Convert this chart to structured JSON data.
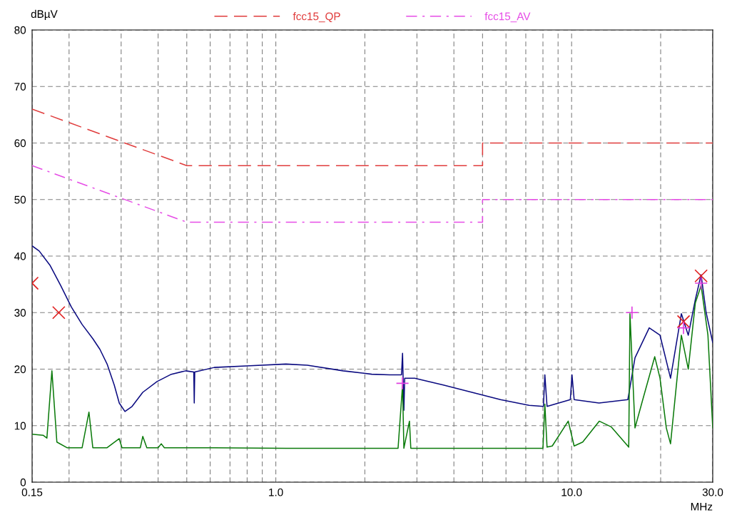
{
  "chart_data": {
    "type": "line",
    "ylabel": "dBµV",
    "xlabel": "MHz",
    "log": "x",
    "xlim": [
      0.15,
      30
    ],
    "ylim": [
      0,
      80
    ],
    "xticks": [
      {
        "value": 0.15,
        "label": "0.15"
      },
      {
        "value": 0.2,
        "label": null
      },
      {
        "value": 0.3,
        "label": null
      },
      {
        "value": 0.4,
        "label": null
      },
      {
        "value": 0.5,
        "label": null
      },
      {
        "value": 0.6,
        "label": null
      },
      {
        "value": 0.7,
        "label": null
      },
      {
        "value": 0.8,
        "label": null
      },
      {
        "value": 0.9,
        "label": null
      },
      {
        "value": 1,
        "label": "1.0"
      },
      {
        "value": 2,
        "label": null
      },
      {
        "value": 3,
        "label": null
      },
      {
        "value": 4,
        "label": null
      },
      {
        "value": 5,
        "label": null
      },
      {
        "value": 6,
        "label": null
      },
      {
        "value": 7,
        "label": null
      },
      {
        "value": 8,
        "label": null
      },
      {
        "value": 9,
        "label": null
      },
      {
        "value": 10,
        "label": "10.0"
      },
      {
        "value": 20,
        "label": null
      },
      {
        "value": 30,
        "label": "30.0"
      }
    ],
    "yticks": [
      0,
      10,
      20,
      30,
      40,
      50,
      60,
      70,
      80
    ],
    "grid": true,
    "legend": "top",
    "series": [
      {
        "name": "fcc15_QP",
        "color": "#e03c3c",
        "line_style": "dashed",
        "x": [
          0.15,
          0.5,
          5,
          5,
          30
        ],
        "values": [
          66,
          56,
          56,
          60,
          60
        ]
      },
      {
        "name": "fcc15_AV",
        "color": "#e64ce6",
        "line_style": "dashdot",
        "x": [
          0.15,
          0.5,
          5,
          5,
          30
        ],
        "values": [
          56,
          46,
          46,
          50,
          50
        ]
      },
      {
        "color": "#0a0a80",
        "line_style": "solid",
        "x": [
          0.15,
          0.1585,
          0.1723,
          0.1873,
          0.2036,
          0.2214,
          0.2406,
          0.2543,
          0.2689,
          0.2843,
          0.2956,
          0.309,
          0.3266,
          0.355,
          0.3967,
          0.4434,
          0.4955,
          0.528,
          0.53,
          0.532,
          0.6195,
          0.8186,
          1.082,
          1.278,
          1.689,
          2.11,
          2.426,
          2.66,
          2.682,
          2.71,
          2.727,
          2.948,
          3.684,
          4.602,
          5.75,
          7.185,
          8.03,
          8.12,
          8.26,
          9.9,
          10.03,
          10.2,
          12.38,
          15.49,
          16.38,
          18.3,
          19.9,
          21.6,
          23.5,
          24.8,
          26.2,
          27.4,
          28.5,
          30
        ],
        "values": [
          41.8,
          40.9,
          38.4,
          34.8,
          31,
          27.9,
          25.4,
          23.5,
          20.9,
          17.2,
          14,
          12.5,
          13.4,
          15.9,
          17.8,
          19.1,
          19.7,
          19.5,
          14,
          19.5,
          20.3,
          20.6,
          20.9,
          20.7,
          19.7,
          19.1,
          19,
          19,
          22.8,
          12.7,
          18.4,
          18.4,
          17.2,
          15.9,
          14.6,
          13.6,
          13.4,
          19,
          13.4,
          14.6,
          19,
          14.6,
          14,
          14.6,
          22,
          27.3,
          26,
          18.4,
          29.8,
          26,
          32.3,
          36.7,
          30,
          24.7
        ]
      },
      {
        "color": "#0a7a0a",
        "line_style": "solid",
        "x": [
          0.15,
          0.1634,
          0.1683,
          0.175,
          0.1819,
          0.1968,
          0.2214,
          0.2335,
          0.2406,
          0.2481,
          0.2689,
          0.2956,
          0.302,
          0.309,
          0.3483,
          0.355,
          0.3664,
          0.4,
          0.41,
          0.42,
          0.6195,
          1.082,
          2.59,
          2.682,
          2.71,
          2.83,
          2.86,
          2.9,
          5.75,
          8.0,
          8.12,
          8.26,
          8.6,
          9.74,
          10.2,
          10.9,
          12.4,
          13.6,
          15.6,
          15.75,
          16.38,
          17.4,
          19.1,
          19.9,
          20.9,
          21.6,
          23.5,
          24.8,
          26.2,
          27.4,
          28.9,
          30
        ],
        "values": [
          8.5,
          8.3,
          7.8,
          19.7,
          7.1,
          6.1,
          6.1,
          12.4,
          6.1,
          6.1,
          6.1,
          7.7,
          6.1,
          6.1,
          6.1,
          8.1,
          6.1,
          6.1,
          6.8,
          6.1,
          6.1,
          6.0,
          6.0,
          17.2,
          6.0,
          10.8,
          6.0,
          6.0,
          6.0,
          6.0,
          13.8,
          6.2,
          6.4,
          10.8,
          6.4,
          7.1,
          10.8,
          9.8,
          6.2,
          29.8,
          9.6,
          14.6,
          22.2,
          18.4,
          9.6,
          6.8,
          26,
          20,
          31.7,
          34.8,
          26,
          9.6
        ]
      },
      {
        "type": "scatter",
        "color": "#e02020",
        "marker": "cross",
        "x": [
          0.15,
          0.1846,
          23.9,
          27.4
        ],
        "values": [
          35.2,
          30.0,
          28.4,
          36.5
        ]
      },
      {
        "type": "scatter",
        "color": "#e040e0",
        "marker": "plus",
        "x": [
          2.68,
          16.0,
          23.9,
          27.4
        ],
        "values": [
          17.5,
          30.0,
          27.3,
          35.2
        ]
      }
    ]
  }
}
